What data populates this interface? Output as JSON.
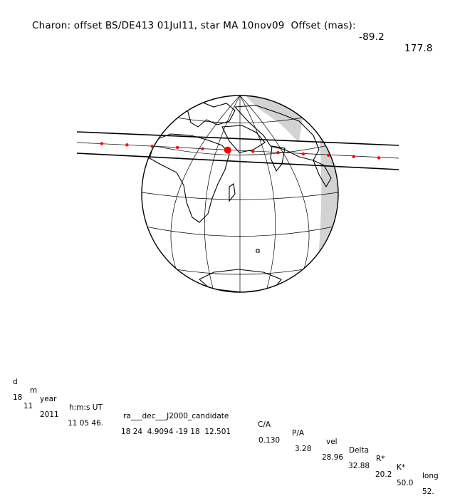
{
  "header": {
    "title": "Charon: offset BS/DE413 01Jul11, star MA 10nov09  Offset (mas):",
    "offset_ra": "-89.2",
    "offset_dec": "177.8"
  },
  "colors": {
    "track_points": "#ff0000",
    "night_shade": "#d3d3d3",
    "lines": "#000000"
  },
  "track": {
    "point_count": 12,
    "closest_approach_marker": "large-red-dot"
  },
  "table": {
    "headers": [
      "d",
      "m",
      "year",
      "h:m:s UT",
      "ra___dec___J2000_candidate",
      "C/A",
      "P/A",
      "vel",
      "Delta",
      "R*",
      "K*",
      "long"
    ],
    "values": [
      "18",
      "11",
      "2011",
      "11 05 46.",
      "18 24  4.9094 -19 18  12.501",
      "0.130",
      "3.28",
      "28.96",
      "32.88",
      "20.2",
      "50.0",
      "52."
    ]
  }
}
